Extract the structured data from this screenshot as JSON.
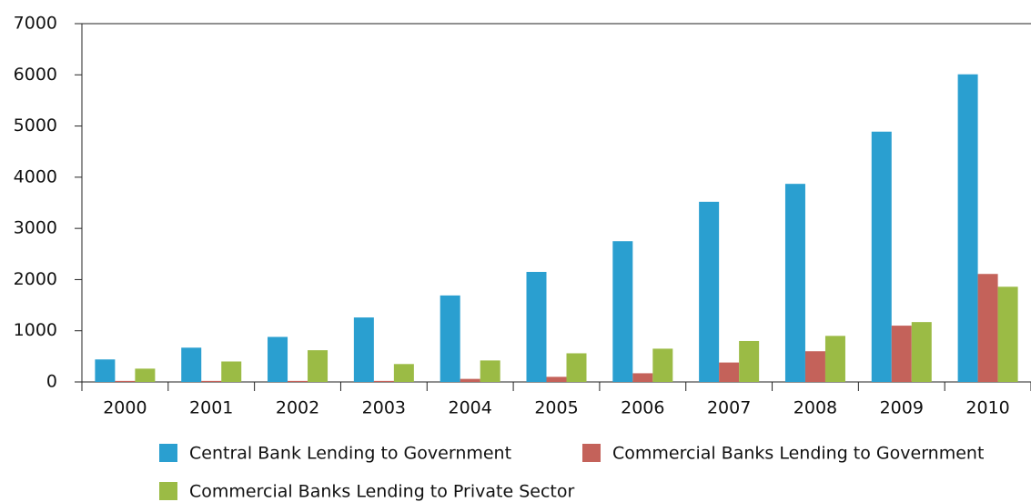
{
  "chart_data": {
    "type": "bar",
    "categories": [
      "2000",
      "2001",
      "2002",
      "2003",
      "2004",
      "2005",
      "2006",
      "2007",
      "2008",
      "2009",
      "2010"
    ],
    "series": [
      {
        "name": "Central Bank Lending to Government",
        "color": "#2a9fd0",
        "values": [
          440,
          670,
          880,
          1260,
          1690,
          2150,
          2750,
          3520,
          3870,
          4890,
          6010
        ]
      },
      {
        "name": "Commercial Banks Lending to Government",
        "color": "#c4625a",
        "values": [
          20,
          20,
          20,
          20,
          60,
          100,
          170,
          380,
          600,
          1100,
          2110
        ]
      },
      {
        "name": "Commercial Banks Lending to Private Sector",
        "color": "#9bbb45",
        "values": [
          260,
          400,
          620,
          350,
          420,
          560,
          650,
          800,
          900,
          1170,
          1860
        ]
      }
    ],
    "ylim": [
      0,
      7000
    ],
    "yticks": [
      0,
      1000,
      2000,
      3000,
      4000,
      5000,
      6000,
      7000
    ],
    "grid": false
  }
}
